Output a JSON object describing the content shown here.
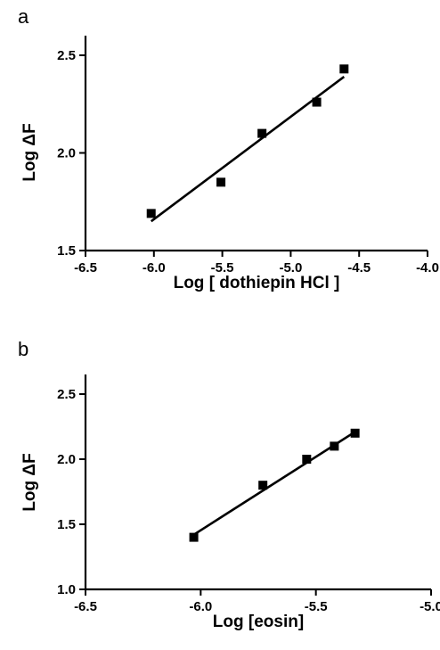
{
  "chart_data": [
    {
      "panel": "a",
      "type": "scatter",
      "xlabel": "Log [ dothiepin HCl ]",
      "ylabel": "Log ΔF",
      "xlim": [
        -6.5,
        -4.0
      ],
      "ylim": [
        1.5,
        2.5
      ],
      "xticks": [
        "-6.5",
        "-6.0",
        "-5.5",
        "-5.0",
        "-4.5",
        "-4.0"
      ],
      "yticks": [
        "1.5",
        "2.0",
        "2.5"
      ],
      "grid": false,
      "points": [
        {
          "x": -6.02,
          "y": 1.69
        },
        {
          "x": -5.51,
          "y": 1.85
        },
        {
          "x": -5.21,
          "y": 2.1
        },
        {
          "x": -4.81,
          "y": 2.26
        },
        {
          "x": -4.61,
          "y": 2.43
        }
      ],
      "fit_line": {
        "x": [
          -6.02,
          -4.61
        ],
        "y": [
          1.65,
          2.39
        ]
      }
    },
    {
      "panel": "b",
      "type": "scatter",
      "xlabel": "Log [eosin]",
      "ylabel": "Log ΔF",
      "xlim": [
        -6.5,
        -5.0
      ],
      "ylim": [
        1.0,
        2.5
      ],
      "xticks": [
        "-6.5",
        "-6.0",
        "-5.5",
        "-5.0"
      ],
      "yticks": [
        "1.0",
        "1.5",
        "2.0",
        "2.5"
      ],
      "grid": false,
      "points": [
        {
          "x": -6.03,
          "y": 1.4
        },
        {
          "x": -5.73,
          "y": 1.8
        },
        {
          "x": -5.54,
          "y": 2.0
        },
        {
          "x": -5.42,
          "y": 2.1
        },
        {
          "x": -5.33,
          "y": 2.2
        }
      ],
      "fit_line": {
        "x": [
          -6.03,
          -5.33
        ],
        "y": [
          1.42,
          2.21
        ]
      }
    }
  ]
}
